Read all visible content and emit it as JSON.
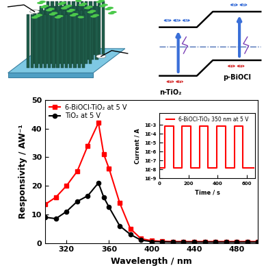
{
  "chart_data": [
    {
      "type": "line",
      "x_label": "Wavelength / nm",
      "y_label": "Responsivity / AW⁻¹",
      "x": [
        300,
        310,
        320,
        330,
        340,
        350,
        355,
        360,
        370,
        380,
        390,
        400,
        410,
        420,
        430,
        440,
        450,
        460,
        470,
        480,
        490,
        500
      ],
      "series": [
        {
          "name": "6-BiOCl-TiO₂ at 5 V",
          "color": "#ff0000",
          "marker": "square",
          "line_style": "solid",
          "values": [
            13.5,
            16,
            20,
            25,
            34,
            42,
            31,
            26,
            14,
            5,
            1.5,
            0.8,
            0.6,
            0.5,
            0.5,
            0.5,
            0.5,
            0.5,
            0.5,
            0.5,
            0.5,
            0.5
          ]
        },
        {
          "name": "TiO₂ at 5 V",
          "color": "#000000",
          "marker": "circle",
          "line_style": "solid",
          "values": [
            9,
            8.5,
            11,
            14.5,
            16.5,
            21,
            16,
            12.5,
            6,
            3,
            1,
            0.5,
            0.4,
            0.3,
            0.3,
            0.3,
            0.3,
            0.3,
            0.3,
            0.3,
            0.3,
            0.3
          ]
        }
      ],
      "xlim": [
        300,
        500
      ],
      "xticks": [
        320,
        360,
        400,
        440,
        480
      ],
      "ylim": [
        0,
        50
      ],
      "yticks": [
        0,
        10,
        20,
        30,
        40,
        50
      ],
      "legend": "upper left"
    },
    {
      "type": "line",
      "x_label": "Time / s",
      "y_label": "Current / A",
      "log": "y",
      "x": [
        0,
        35,
        35,
        95,
        95,
        155,
        155,
        215,
        215,
        275,
        275,
        335,
        335,
        395,
        395,
        455,
        455,
        515,
        515,
        575,
        575,
        650
      ],
      "series": [
        {
          "name": "6-BiOCl-TiO₂ 350 nm at 5 V",
          "color": "#ff0000",
          "line_style": "solid",
          "values": [
            1.5e-08,
            1.5e-08,
            0.0007,
            0.0007,
            1.5e-08,
            1.5e-08,
            0.0007,
            0.0007,
            1.5e-08,
            1.5e-08,
            0.0007,
            0.0007,
            1.5e-08,
            1.5e-08,
            0.0007,
            0.0007,
            1.5e-08,
            1.5e-08,
            0.0007,
            0.0007,
            1.5e-08,
            1.5e-08
          ]
        }
      ],
      "xlim": [
        0,
        660
      ],
      "xticks": [
        0,
        200,
        400,
        600
      ],
      "ylim": [
        1e-09,
        0.02
      ],
      "yticks": [
        {
          "value": 1e-09,
          "label": "1E-9"
        },
        {
          "value": 1e-08,
          "label": "1E-8"
        },
        {
          "value": 1e-07,
          "label": "1E-7"
        },
        {
          "value": 1e-06,
          "label": "1E-6"
        },
        {
          "value": 1e-05,
          "label": "1E-5"
        },
        {
          "value": 0.0001,
          "label": "1E-4"
        },
        {
          "value": 0.001,
          "label": "1E-3"
        }
      ],
      "legend": "upper center"
    }
  ],
  "schematic": {
    "labels": [
      "n-TiO₂",
      "p-BiOCl"
    ],
    "electron": "e",
    "hole": "h",
    "electrons": [
      3,
      2
    ],
    "holes": [
      2,
      2
    ]
  }
}
